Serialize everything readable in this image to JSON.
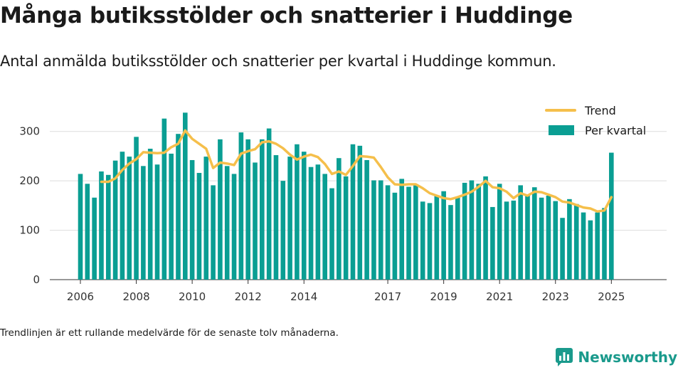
{
  "header": {
    "title": "Många butiksstölder och snatterier i Huddinge",
    "subtitle": "Antal anmälda butiksstölder och snatterier per kvartal i Huddinge kommun."
  },
  "footer": {
    "note": "Trendlinjen är ett rullande medelvärde för de senaste tolv månaderna.",
    "brand": "Newsworthy"
  },
  "colors": {
    "bars": "#0a9e93",
    "trend": "#f5bf4b",
    "grid": "#dddddd",
    "brand": "#1a9a8c"
  },
  "chart_data": {
    "type": "bar",
    "x_tick_labels": [
      "2006",
      "2008",
      "2010",
      "2012",
      "2014",
      "2017",
      "2019",
      "2021",
      "2023",
      "2025"
    ],
    "ylim": [
      0,
      350
    ],
    "yticks": [
      0,
      100,
      200,
      300
    ],
    "grid": true,
    "legend_position": "top-right",
    "series": [
      {
        "name": "Per kvartal",
        "type": "bar",
        "x": [
          "2006Q1",
          "2006Q2",
          "2006Q3",
          "2006Q4",
          "2007Q1",
          "2007Q2",
          "2007Q3",
          "2007Q4",
          "2008Q1",
          "2008Q2",
          "2008Q3",
          "2008Q4",
          "2009Q1",
          "2009Q2",
          "2009Q3",
          "2009Q4",
          "2010Q1",
          "2010Q2",
          "2010Q3",
          "2010Q4",
          "2011Q1",
          "2011Q2",
          "2011Q3",
          "2011Q4",
          "2012Q1",
          "2012Q2",
          "2012Q3",
          "2012Q4",
          "2013Q1",
          "2013Q2",
          "2013Q3",
          "2013Q4",
          "2014Q1",
          "2014Q2",
          "2014Q3",
          "2014Q4",
          "2015Q1",
          "2015Q2",
          "2015Q3",
          "2015Q4",
          "2016Q1",
          "2016Q2",
          "2016Q3",
          "2016Q4",
          "2017Q1",
          "2017Q2",
          "2017Q3",
          "2017Q4",
          "2018Q1",
          "2018Q2",
          "2018Q3",
          "2018Q4",
          "2019Q1",
          "2019Q2",
          "2019Q3",
          "2019Q4",
          "2020Q1",
          "2020Q2",
          "2020Q3",
          "2020Q4",
          "2021Q1",
          "2021Q2",
          "2021Q3",
          "2021Q4",
          "2022Q1",
          "2022Q2",
          "2022Q3",
          "2022Q4",
          "2023Q1",
          "2023Q2",
          "2023Q3",
          "2023Q4",
          "2024Q1",
          "2024Q2",
          "2024Q3",
          "2024Q4",
          "2025Q1"
        ],
        "values": [
          214,
          194,
          166,
          219,
          212,
          241,
          259,
          249,
          289,
          230,
          265,
          233,
          326,
          255,
          295,
          338,
          242,
          216,
          249,
          191,
          284,
          230,
          214,
          298,
          284,
          237,
          284,
          306,
          252,
          200,
          249,
          274,
          259,
          228,
          233,
          214,
          185,
          246,
          209,
          274,
          271,
          242,
          201,
          201,
          191,
          176,
          204,
          188,
          191,
          158,
          155,
          170,
          179,
          151,
          166,
          196,
          201,
          194,
          209,
          147,
          194,
          158,
          160,
          191,
          171,
          187,
          166,
          170,
          159,
          125,
          163,
          153,
          136,
          120,
          136,
          145,
          257
        ]
      },
      {
        "name": "Trend",
        "type": "line",
        "x": [
          "2006Q4",
          "2007Q1",
          "2007Q2",
          "2007Q3",
          "2007Q4",
          "2008Q1",
          "2008Q2",
          "2008Q3",
          "2008Q4",
          "2009Q1",
          "2009Q2",
          "2009Q3",
          "2009Q4",
          "2010Q1",
          "2010Q2",
          "2010Q3",
          "2010Q4",
          "2011Q1",
          "2011Q2",
          "2011Q3",
          "2011Q4",
          "2012Q1",
          "2012Q2",
          "2012Q3",
          "2012Q4",
          "2013Q1",
          "2013Q2",
          "2013Q3",
          "2013Q4",
          "2014Q1",
          "2014Q2",
          "2014Q3",
          "2014Q4",
          "2015Q1",
          "2015Q2",
          "2015Q3",
          "2015Q4",
          "2016Q1",
          "2016Q2",
          "2016Q3",
          "2016Q4",
          "2017Q1",
          "2017Q2",
          "2017Q3",
          "2017Q4",
          "2018Q1",
          "2018Q2",
          "2018Q3",
          "2018Q4",
          "2019Q1",
          "2019Q2",
          "2019Q3",
          "2019Q4",
          "2020Q1",
          "2020Q2",
          "2020Q3",
          "2020Q4",
          "2021Q1",
          "2021Q2",
          "2021Q3",
          "2021Q4",
          "2022Q1",
          "2022Q2",
          "2022Q3",
          "2022Q4",
          "2023Q1",
          "2023Q2",
          "2023Q3",
          "2023Q4",
          "2024Q1",
          "2024Q2",
          "2024Q3",
          "2024Q4",
          "2025Q1"
        ],
        "values": [
          198,
          198,
          205,
          222,
          235,
          244,
          258,
          257,
          256,
          257,
          268,
          275,
          302,
          285,
          275,
          265,
          226,
          237,
          235,
          232,
          255,
          260,
          264,
          278,
          280,
          275,
          266,
          253,
          243,
          249,
          253,
          248,
          234,
          214,
          219,
          212,
          230,
          250,
          249,
          247,
          228,
          207,
          193,
          192,
          193,
          193,
          185,
          175,
          170,
          165,
          163,
          167,
          172,
          178,
          188,
          200,
          187,
          185,
          178,
          165,
          175,
          170,
          178,
          177,
          172,
          167,
          158,
          156,
          151,
          146,
          144,
          138,
          140,
          167
        ]
      }
    ]
  }
}
